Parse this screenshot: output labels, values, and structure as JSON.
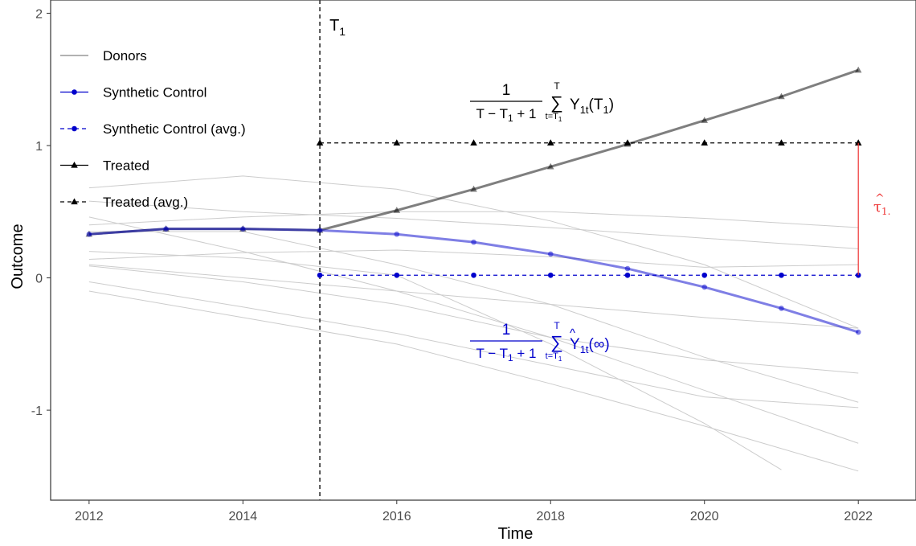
{
  "chart_data": {
    "type": "line",
    "xlabel": "Time",
    "ylabel": "Outcome",
    "xlim": [
      2011.5,
      2022.75
    ],
    "ylim": [
      -1.68,
      2.1
    ],
    "x_ticks": [
      2012,
      2014,
      2016,
      2018,
      2020,
      2022
    ],
    "x_tick_labels": [
      "2012",
      "2014",
      "2016",
      "2018",
      "2020",
      "2022"
    ],
    "y_ticks": [
      -1,
      0,
      1,
      2
    ],
    "y_tick_labels": [
      "-1",
      "0",
      "1",
      "2"
    ],
    "grid": false,
    "legend_position": "top-left",
    "vline": {
      "x": 2015,
      "label": "T",
      "label_sub": "1"
    },
    "years": [
      2012,
      2013,
      2014,
      2015,
      2016,
      2017,
      2018,
      2019,
      2020,
      2021,
      2022
    ],
    "series": [
      {
        "name": "Treated",
        "color": "#000000",
        "values": [
          0.33,
          0.37,
          0.37,
          0.36,
          0.51,
          0.67,
          0.84,
          1.01,
          1.19,
          1.37,
          1.57
        ]
      },
      {
        "name": "Synthetic Control",
        "color": "#0000cc",
        "values": [
          0.33,
          0.37,
          0.37,
          0.36,
          0.33,
          0.27,
          0.18,
          0.07,
          -0.07,
          -0.23,
          -0.41
        ]
      },
      {
        "name": "Treated (avg.)",
        "color": "#000000",
        "x": [
          2015,
          2016,
          2017,
          2018,
          2019,
          2020,
          2021,
          2022
        ],
        "values": [
          1.02,
          1.02,
          1.02,
          1.02,
          1.02,
          1.02,
          1.02,
          1.02
        ]
      },
      {
        "name": "Synthetic Control (avg.)",
        "color": "#0000cc",
        "x": [
          2015,
          2016,
          2017,
          2018,
          2019,
          2020,
          2021,
          2022
        ],
        "values": [
          0.02,
          0.02,
          0.02,
          0.02,
          0.02,
          0.02,
          0.02,
          0.02
        ]
      }
    ],
    "donors": [
      {
        "x": [
          2012,
          2014,
          2016,
          2018,
          2020,
          2022
        ],
        "values": [
          0.68,
          0.77,
          0.67,
          0.43,
          0.1,
          -0.38
        ]
      },
      {
        "x": [
          2012,
          2014,
          2016,
          2018,
          2020,
          2022
        ],
        "values": [
          0.58,
          0.5,
          0.45,
          0.38,
          0.3,
          0.22
        ]
      },
      {
        "x": [
          2012,
          2014,
          2016,
          2018,
          2020,
          2022
        ],
        "values": [
          0.4,
          0.46,
          0.5,
          0.5,
          0.45,
          0.38
        ]
      },
      {
        "x": [
          2012,
          2014,
          2016,
          2018,
          2020,
          2022
        ],
        "values": [
          0.14,
          0.19,
          0.21,
          0.16,
          0.08,
          0.1
        ]
      },
      {
        "x": [
          2012,
          2014,
          2016,
          2018,
          2020,
          2022
        ],
        "values": [
          0.1,
          0.0,
          -0.1,
          -0.2,
          -0.3,
          -0.38
        ]
      },
      {
        "x": [
          2012,
          2014,
          2016,
          2018,
          2020,
          2022
        ],
        "values": [
          0.09,
          -0.03,
          -0.2,
          -0.45,
          -0.62,
          -0.72
        ]
      },
      {
        "x": [
          2012,
          2014,
          2016,
          2018,
          2020,
          2022
        ],
        "values": [
          0.46,
          0.2,
          -0.1,
          -0.45,
          -0.85,
          -1.25
        ]
      },
      {
        "x": [
          2012,
          2014,
          2016,
          2018,
          2020,
          2022
        ],
        "values": [
          -0.03,
          -0.22,
          -0.42,
          -0.66,
          -0.9,
          -0.98
        ]
      },
      {
        "x": [
          2012,
          2014,
          2016,
          2018,
          2020,
          2022
        ],
        "values": [
          -0.1,
          -0.3,
          -0.5,
          -0.8,
          -1.12,
          -1.46
        ]
      },
      {
        "x": [
          2012,
          2014,
          2016,
          2018,
          2020,
          2021
        ],
        "values": [
          0.2,
          0.15,
          0.02,
          -0.5,
          -1.1,
          -1.45
        ]
      },
      {
        "x": [
          2012,
          2014,
          2016,
          2018,
          2020,
          2022
        ],
        "values": [
          0.35,
          0.35,
          0.1,
          -0.2,
          -0.6,
          -0.94
        ]
      }
    ],
    "effect_gap": {
      "x": 2022,
      "from": 0.02,
      "to": 1.02,
      "color": "#ee3333",
      "label": "τ",
      "label_hat": "^",
      "label_sub": "1."
    },
    "annotations": {
      "treated": {
        "numerator": "1",
        "denominator": "T − T",
        "den_sub": "1",
        "den_tail": " + 1",
        "sum_top": "T",
        "sum": "∑",
        "sum_bottom": "t=T",
        "sum_bottom_sub": "1",
        "term": "Y",
        "term_sub": "1t",
        "term_tail": "(T",
        "term_tail_sub": "1",
        "term_close": ")"
      },
      "synthetic": {
        "numerator": "1",
        "denominator": "T − T",
        "den_sub": "1",
        "den_tail": " + 1",
        "sum_top": "T",
        "sum": "∑",
        "sum_bottom": "t=T",
        "sum_bottom_sub": "1",
        "term": "Y",
        "term_hat": "^",
        "term_sub": "1t",
        "term_tail": "(∞)"
      }
    }
  }
}
